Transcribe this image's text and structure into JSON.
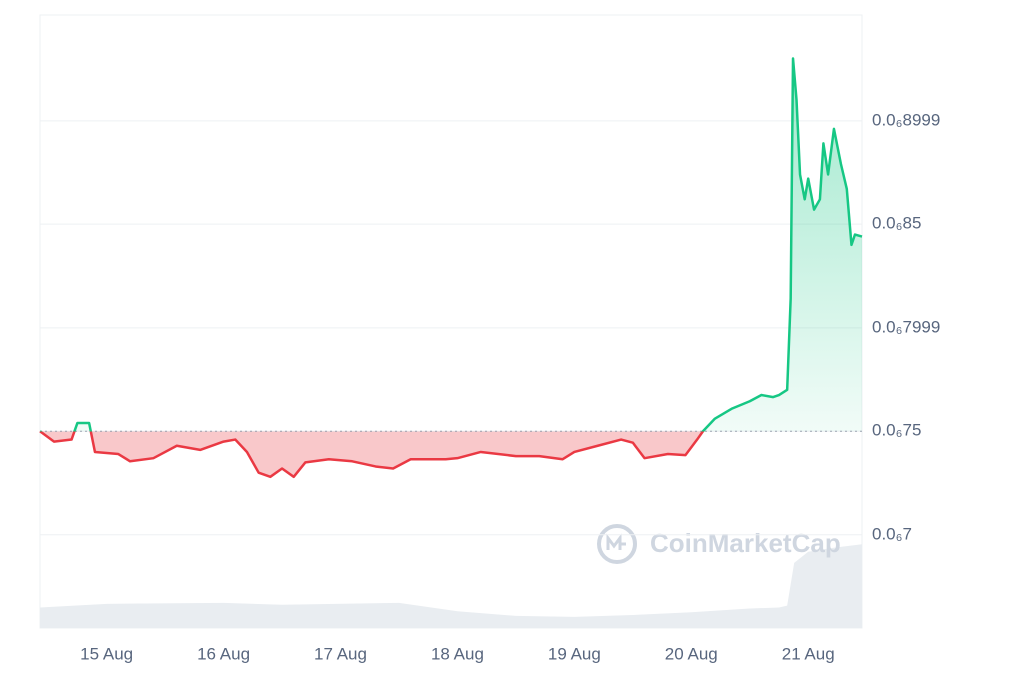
{
  "chart_data": {
    "type": "line",
    "watermark": "CoinMarketCap",
    "x": [
      14.43,
      14.55,
      14.7,
      14.75,
      14.85,
      14.9,
      15.1,
      15.2,
      15.4,
      15.6,
      15.8,
      16.0,
      16.1,
      16.2,
      16.3,
      16.4,
      16.5,
      16.6,
      16.7,
      16.9,
      17.1,
      17.3,
      17.45,
      17.6,
      17.9,
      18.0,
      18.2,
      18.5,
      18.7,
      18.9,
      19.0,
      19.2,
      19.4,
      19.5,
      19.6,
      19.8,
      19.95,
      20.05,
      20.1,
      20.2,
      20.35,
      20.5,
      20.6,
      20.7,
      20.75,
      20.82,
      20.85,
      20.87,
      20.9,
      20.93,
      20.97,
      21.0,
      21.05,
      21.1,
      21.13,
      21.17,
      21.22,
      21.28,
      21.33,
      21.37,
      21.4,
      21.46
    ],
    "series": [
      {
        "name": "Price",
        "values": [
          7.5e-07,
          7.45e-07,
          7.46e-07,
          7.54e-07,
          7.54e-07,
          7.4e-07,
          7.39e-07,
          7.355e-07,
          7.37e-07,
          7.43e-07,
          7.41e-07,
          7.45e-07,
          7.46e-07,
          7.4e-07,
          7.3e-07,
          7.28e-07,
          7.32e-07,
          7.28e-07,
          7.35e-07,
          7.365e-07,
          7.355e-07,
          7.33e-07,
          7.32e-07,
          7.365e-07,
          7.365e-07,
          7.37e-07,
          7.4e-07,
          7.38e-07,
          7.38e-07,
          7.365e-07,
          7.4e-07,
          7.43e-07,
          7.46e-07,
          7.445e-07,
          7.37e-07,
          7.39e-07,
          7.385e-07,
          7.46e-07,
          7.5e-07,
          7.56e-07,
          7.61e-07,
          7.645e-07,
          7.675e-07,
          7.665e-07,
          7.675e-07,
          7.7e-07,
          8.14e-07,
          9.3e-07,
          9.1e-07,
          8.74e-07,
          8.62e-07,
          8.72e-07,
          8.57e-07,
          8.62e-07,
          8.89e-07,
          8.74e-07,
          8.96e-07,
          8.79e-07,
          8.67e-07,
          8.4e-07,
          8.45e-07,
          8.44e-07
        ]
      }
    ],
    "baseline": 7.5e-07,
    "up_color": "#16c784",
    "down_color": "#ea3943",
    "volume": {
      "x": [
        14.43,
        15.0,
        16.0,
        16.5,
        17.5,
        18.0,
        18.5,
        19.0,
        19.5,
        20.0,
        20.5,
        20.75,
        20.82,
        20.88,
        21.0,
        21.2,
        21.46
      ],
      "values": [
        22,
        26,
        27,
        25,
        27,
        18,
        13,
        12,
        14,
        17,
        21,
        22,
        24,
        70,
        82,
        86,
        90
      ],
      "vlim": [
        0,
        100
      ],
      "color": "#e9edf1"
    },
    "xlim": [
      14.43,
      21.46
    ],
    "xticks": [
      {
        "value": 15,
        "label": "15 Aug"
      },
      {
        "value": 16,
        "label": "16 Aug"
      },
      {
        "value": 17,
        "label": "17 Aug"
      },
      {
        "value": 18,
        "label": "18 Aug"
      },
      {
        "value": 19,
        "label": "19 Aug"
      },
      {
        "value": 20,
        "label": "20 Aug"
      },
      {
        "value": 21,
        "label": "21 Aug"
      }
    ],
    "ylim": [
      6.55e-07,
      9.51e-07
    ],
    "yticks": [
      {
        "value": 7e-07,
        "label": "0.0₆7"
      },
      {
        "value": 7.5e-07,
        "label": "0.0₆75"
      },
      {
        "value": 7.999e-07,
        "label": "0.0₆7999"
      },
      {
        "value": 8.5e-07,
        "label": "0.0₆85"
      },
      {
        "value": 8.999e-07,
        "label": "0.0₆8999"
      }
    ],
    "grid": true
  }
}
